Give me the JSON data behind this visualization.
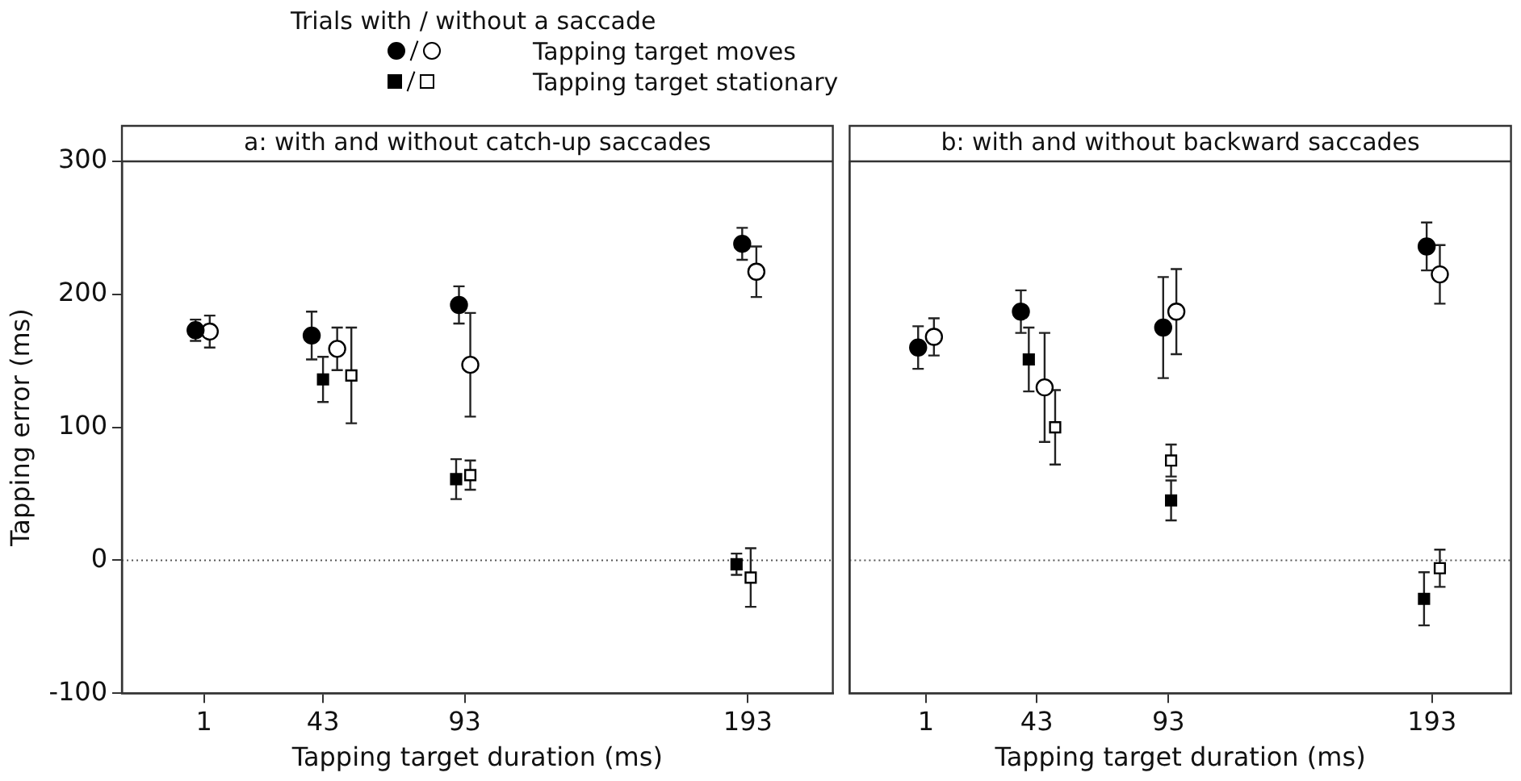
{
  "chart_data": [
    {
      "type": "scatter",
      "title": "a: with and without catch-up saccades",
      "xlabel": "Tapping target duration (ms)",
      "ylabel": "Tapping error (ms)",
      "legend_title": "Trials with / without a saccade",
      "annotations": [
        "Tapping target moves",
        "Tapping target stationary"
      ],
      "xlim": [
        -28,
        223
      ],
      "xticks": [
        1,
        43,
        93,
        193
      ],
      "ylim": [
        -100,
        300
      ],
      "yticks": [
        -100,
        0,
        100,
        200,
        300
      ],
      "ref_lines": [
        {
          "axis": "y",
          "value": 0,
          "line_style": "dotted"
        }
      ],
      "series": [
        {
          "marker": "circle",
          "color": "#000000",
          "x": [
            -2,
            39,
            91,
            191
          ],
          "values": [
            173,
            169,
            192,
            238
          ],
          "errors": [
            8,
            18,
            14,
            12
          ]
        },
        {
          "marker": "circle",
          "color": "#ffffff",
          "x": [
            3,
            48,
            95,
            196
          ],
          "values": [
            172,
            159,
            147,
            217
          ],
          "errors": [
            12,
            16,
            39,
            19
          ]
        },
        {
          "marker": "square",
          "color": "#000000",
          "x": [
            43,
            90,
            189
          ],
          "values": [
            136,
            61,
            -3
          ],
          "errors": [
            17,
            15,
            8
          ]
        },
        {
          "marker": "square",
          "color": "#ffffff",
          "x": [
            53,
            95,
            194
          ],
          "values": [
            139,
            64,
            -13
          ],
          "errors": [
            36,
            11,
            22
          ]
        }
      ]
    },
    {
      "type": "scatter",
      "title": "b: with and without backward saccades",
      "xlabel": "Tapping target duration (ms)",
      "tick_labels": "x",
      "xlim": [
        -28,
        223
      ],
      "xticks": [
        1,
        43,
        93,
        193
      ],
      "ylim": [
        -100,
        300
      ],
      "yticks": [
        -100,
        0,
        100,
        200,
        300
      ],
      "ref_lines": [
        {
          "axis": "y",
          "value": 0,
          "line_style": "dotted"
        }
      ],
      "series": [
        {
          "marker": "circle",
          "color": "#000000",
          "x": [
            -2,
            37,
            91,
            191
          ],
          "values": [
            160,
            187,
            175,
            236
          ],
          "errors": [
            16,
            16,
            38,
            18
          ]
        },
        {
          "marker": "circle",
          "color": "#ffffff",
          "x": [
            4,
            46,
            96,
            196
          ],
          "values": [
            168,
            130,
            187,
            215
          ],
          "errors": [
            14,
            41,
            32,
            22
          ]
        },
        {
          "marker": "square",
          "color": "#000000",
          "x": [
            40,
            94,
            190
          ],
          "values": [
            151,
            45,
            -29
          ],
          "errors": [
            24,
            15,
            20
          ]
        },
        {
          "marker": "square",
          "color": "#ffffff",
          "x": [
            50,
            94,
            196
          ],
          "values": [
            100,
            75,
            -6
          ],
          "errors": [
            28,
            12,
            14
          ]
        }
      ]
    }
  ]
}
